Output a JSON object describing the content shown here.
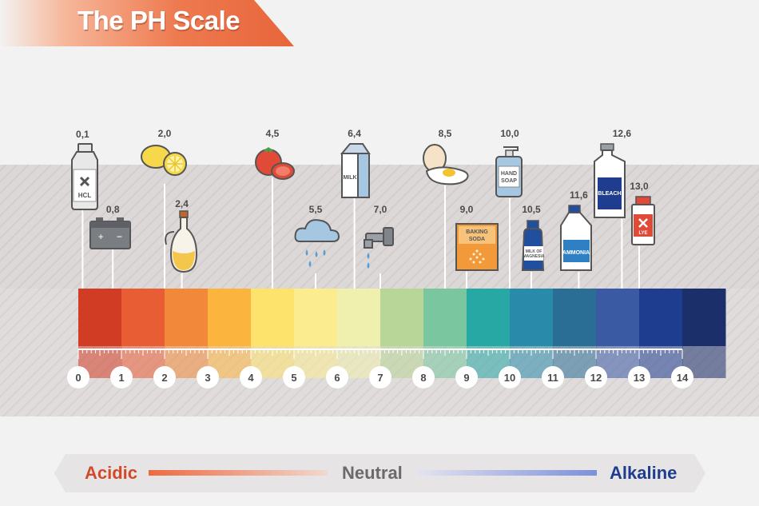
{
  "title": "The PH Scale",
  "legend": {
    "acidic": "Acidic",
    "neutral": "Neutral",
    "alkaline": "Alkaline"
  },
  "scale": {
    "numbers": [
      "0",
      "1",
      "2",
      "3",
      "4",
      "5",
      "6",
      "7",
      "8",
      "9",
      "10",
      "11",
      "12",
      "13",
      "14"
    ],
    "colors": [
      "#d13d24",
      "#e95d35",
      "#f2893a",
      "#fbb53f",
      "#fde26b",
      "#fbec90",
      "#eff0ad",
      "#b8d698",
      "#79c69f",
      "#27a8a4",
      "#2a8aa9",
      "#2a6e96",
      "#3a5aa3",
      "#1f3d8e",
      "#1b2f6b"
    ]
  },
  "substances": [
    {
      "id": "hcl",
      "value": "0,1",
      "label": "HCL"
    },
    {
      "id": "battery",
      "value": "0,8"
    },
    {
      "id": "lemon",
      "value": "2,0"
    },
    {
      "id": "vinegar",
      "value": "2,4"
    },
    {
      "id": "tomato",
      "value": "4,5"
    },
    {
      "id": "rain",
      "value": "5,5"
    },
    {
      "id": "milk",
      "value": "6,4",
      "label": "MILK"
    },
    {
      "id": "water",
      "value": "7,0"
    },
    {
      "id": "egg",
      "value": "8,5"
    },
    {
      "id": "baking-soda",
      "value": "9,0",
      "label_1": "BAKING",
      "label_2": "SODA"
    },
    {
      "id": "hand-soap",
      "value": "10,0",
      "label_1": "HAND",
      "label_2": "SOAP"
    },
    {
      "id": "milk-of-magnesia",
      "value": "10,5",
      "label_1": "MILK OF",
      "label_2": "MAGNESIA"
    },
    {
      "id": "ammonia",
      "value": "11,6",
      "label": "AMMONIA"
    },
    {
      "id": "bleach",
      "value": "12,6",
      "label": "BLEACH"
    },
    {
      "id": "lye",
      "value": "13,0",
      "label": "LYE"
    }
  ]
}
